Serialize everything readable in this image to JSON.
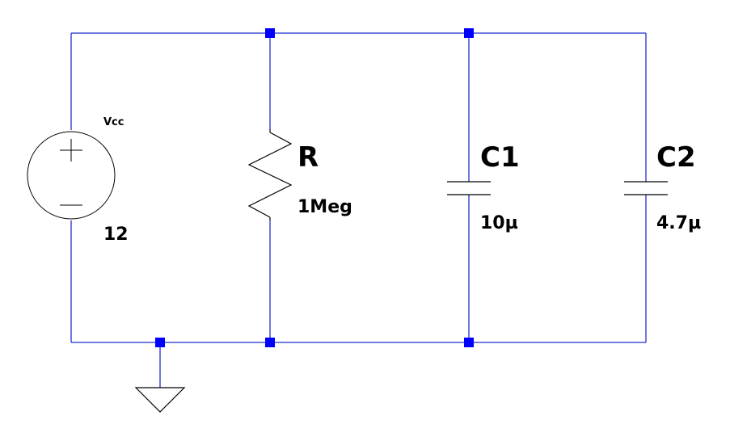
{
  "colors": {
    "wire": "#1f2fd0",
    "node": "#0000ff",
    "component": "#000000",
    "background": "#ffffff"
  },
  "components": {
    "source": {
      "name": "Vcc",
      "value": "12",
      "icon": "voltage-source-icon"
    },
    "resistor": {
      "name": "R",
      "value": "1Meg",
      "icon": "resistor-icon"
    },
    "c1": {
      "name": "C1",
      "value": "10µ",
      "icon": "capacitor-icon"
    },
    "c2": {
      "name": "C2",
      "value": "4.7µ",
      "icon": "capacitor-icon"
    },
    "ground": {
      "icon": "ground-icon"
    }
  }
}
